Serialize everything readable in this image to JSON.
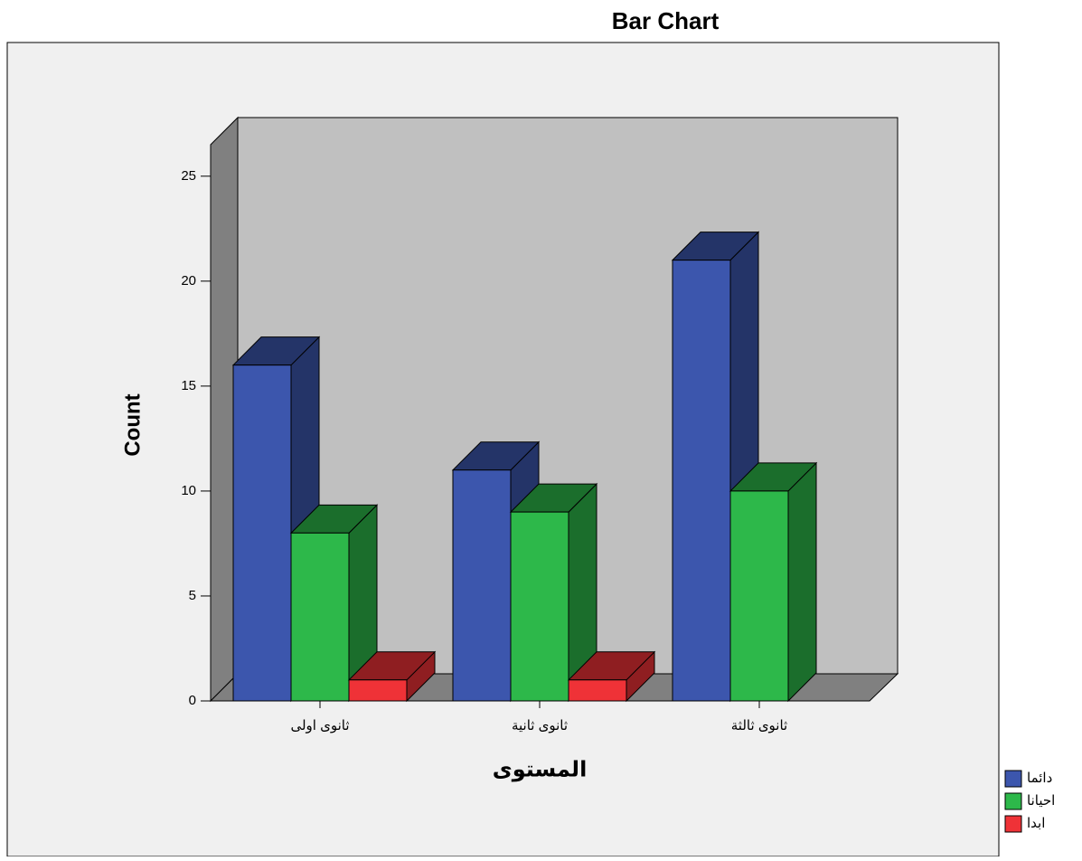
{
  "chart_data": {
    "type": "bar3d",
    "title": "Bar Chart",
    "categories": [
      "ثانوى اولى",
      "ثانوى ثانية",
      "ثانوى ثالثة"
    ],
    "series": [
      {
        "name": "دائما",
        "color": "#3c56ad",
        "values": [
          16,
          11,
          21
        ]
      },
      {
        "name": "احيانا",
        "color": "#2db84a",
        "values": [
          8,
          9,
          10
        ]
      },
      {
        "name": "ابدا",
        "color": "#ef3237",
        "values": [
          1,
          1,
          null
        ]
      }
    ],
    "x_label": "المستوى",
    "y_label": "Count",
    "ylim": [
      0,
      26.5
    ],
    "yticks": [
      0,
      5,
      10,
      15,
      20,
      25
    ],
    "legend": "bottom-right"
  }
}
